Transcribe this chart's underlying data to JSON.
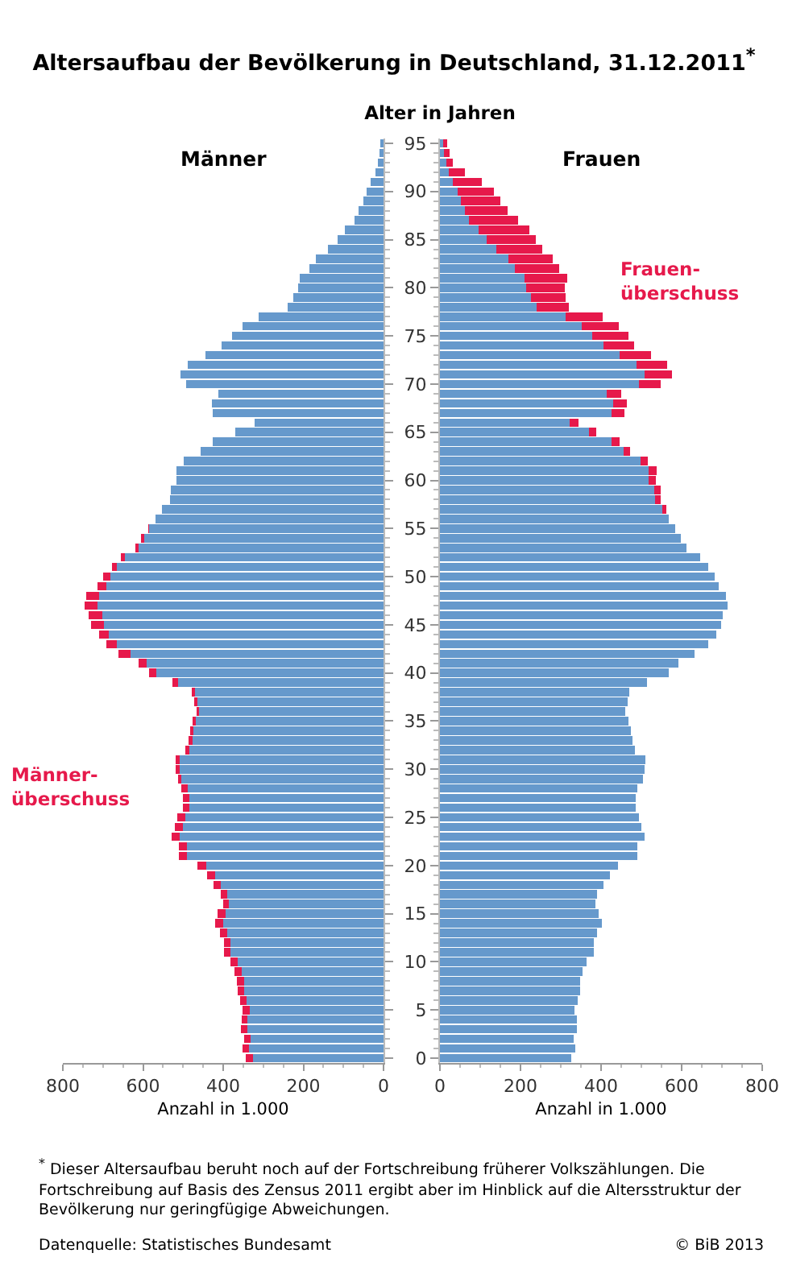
{
  "chart_data": [
    {
      "type": "bar",
      "orientation": "horizontal",
      "stacked": true,
      "tick_labels": "x",
      "title": "Altersaufbau der Bevölkerung in Deutschland, 31.12.2011$^{*}$",
      "subtitle": "Männer",
      "xlabel": "Anzahl in 1.000",
      "categories": [
        "95",
        null,
        null,
        null,
        null,
        "90",
        null,
        null,
        null,
        null,
        "85",
        null,
        null,
        null,
        null,
        "80",
        null,
        null,
        null,
        null,
        "75",
        null,
        null,
        null,
        null,
        "70",
        null,
        null,
        null,
        null,
        "65",
        null,
        null,
        null,
        null,
        "60",
        null,
        null,
        null,
        null,
        "55",
        null,
        null,
        null,
        null,
        "50",
        null,
        null,
        null,
        null,
        "45",
        null,
        null,
        null,
        null,
        "40",
        null,
        null,
        null,
        null,
        "35",
        null,
        null,
        null,
        null,
        "30",
        null,
        null,
        null,
        null,
        "25",
        null,
        null,
        null,
        null,
        "20",
        null,
        null,
        null,
        null,
        "15",
        null,
        null,
        null,
        null,
        "10",
        null,
        null,
        null,
        null,
        "5",
        null,
        null,
        null,
        null,
        "0"
      ],
      "xlim": [
        800,
        0
      ],
      "xticks": [
        800,
        600,
        400,
        200,
        0
      ],
      "series": [
        {
          "color": "#6699cc",
          "values": [
            8,
            10,
            15,
            21,
            32,
            43,
            51,
            62,
            72,
            96,
            115,
            139,
            169,
            185,
            209,
            214,
            225,
            239,
            311,
            351,
            378,
            405,
            445,
            488,
            507,
            493,
            413,
            429,
            426,
            322,
            370,
            426,
            456,
            498,
            517,
            517,
            531,
            533,
            552,
            568,
            584,
            598,
            611,
            645,
            665,
            682,
            691,
            709,
            714,
            701,
            698,
            685,
            665,
            632,
            591,
            567,
            513,
            470,
            465,
            460,
            468,
            474,
            477,
            484,
            509,
            508,
            504,
            489,
            485,
            485,
            494,
            500,
            508,
            490,
            490,
            442,
            421,
            406,
            389,
            385,
            393,
            401,
            390,
            381,
            381,
            363,
            354,
            348,
            348,
            342,
            334,
            339,
            339,
            331,
            336,
            326
          ]
        },
        {
          "color": "#e6194b",
          "values": [
            null,
            null,
            null,
            null,
            null,
            null,
            null,
            null,
            null,
            null,
            null,
            null,
            null,
            null,
            null,
            null,
            null,
            null,
            null,
            null,
            null,
            null,
            null,
            null,
            null,
            null,
            null,
            null,
            null,
            null,
            null,
            null,
            null,
            null,
            null,
            null,
            null,
            null,
            null,
            null,
            3,
            8,
            8,
            10,
            13,
            18,
            22,
            32,
            32,
            35,
            31,
            24,
            26,
            29,
            21,
            17,
            14,
            8,
            8,
            7,
            8,
            8,
            9,
            10,
            10,
            10,
            9,
            15,
            16,
            16,
            21,
            21,
            20,
            21,
            21,
            22,
            20,
            19,
            18,
            16,
            21,
            20,
            18,
            18,
            18,
            18,
            17,
            17,
            16,
            15,
            17,
            15,
            16,
            17,
            16,
            17
          ]
        }
      ],
      "annotations": [
        "Männer-\nüberschuss",
        "$^{*}$ Dieser Altersaufbau beruht noch auf der Fortschreibung früherer Volkszählungen. Die Fortschreibung auf Basis des Zensus 2011 ergibt aber im Hinblick auf die Altersstruktur der Bevölkerung nur geringfügige Abweichungen.",
        "Datenquelle: Statistisches Bundesamt",
        "© BiB 2013"
      ]
    },
    {
      "type": "bar",
      "orientation": "horizontal",
      "stacked": true,
      "subtitle": "Frauen",
      "ylabel": "Alter in Jahren",
      "xlabel": "Anzahl in 1.000",
      "categories": [
        "95",
        null,
        null,
        null,
        null,
        "90",
        null,
        null,
        null,
        null,
        "85",
        null,
        null,
        null,
        null,
        "80",
        null,
        null,
        null,
        null,
        "75",
        null,
        null,
        null,
        null,
        "70",
        null,
        null,
        null,
        null,
        "65",
        null,
        null,
        null,
        null,
        "60",
        null,
        null,
        null,
        null,
        "55",
        null,
        null,
        null,
        null,
        "50",
        null,
        null,
        null,
        null,
        "45",
        null,
        null,
        null,
        null,
        "40",
        null,
        null,
        null,
        null,
        "35",
        null,
        null,
        null,
        null,
        "30",
        null,
        null,
        null,
        null,
        "25",
        null,
        null,
        null,
        null,
        "20",
        null,
        null,
        null,
        null,
        "15",
        null,
        null,
        null,
        null,
        "10",
        null,
        null,
        null,
        null,
        "5",
        null,
        null,
        null,
        null,
        "0"
      ],
      "xlim": [
        0,
        800
      ],
      "xticks": [
        0,
        200,
        400,
        600,
        800
      ],
      "series": [
        {
          "color": "#6699cc",
          "values": [
            8,
            10,
            15,
            21,
            32,
            43,
            51,
            62,
            72,
            96,
            115,
            139,
            169,
            185,
            209,
            214,
            225,
            239,
            311,
            351,
            378,
            405,
            445,
            488,
            507,
            493,
            413,
            429,
            426,
            322,
            370,
            426,
            456,
            498,
            517,
            517,
            531,
            533,
            552,
            568,
            584,
            598,
            611,
            645,
            665,
            682,
            691,
            709,
            714,
            701,
            698,
            685,
            665,
            632,
            591,
            567,
            513,
            470,
            465,
            460,
            468,
            474,
            477,
            484,
            509,
            508,
            504,
            489,
            485,
            485,
            494,
            500,
            508,
            490,
            490,
            442,
            421,
            406,
            389,
            385,
            393,
            401,
            390,
            381,
            381,
            363,
            354,
            348,
            348,
            342,
            334,
            339,
            339,
            331,
            336,
            326
          ]
        },
        {
          "color": "#e6194b",
          "values": [
            9,
            13,
            16,
            41,
            71,
            90,
            98,
            106,
            121,
            126,
            122,
            114,
            110,
            110,
            107,
            96,
            87,
            81,
            92,
            93,
            90,
            77,
            78,
            75,
            69,
            54,
            37,
            35,
            31,
            22,
            17,
            19,
            16,
            17,
            20,
            19,
            16,
            14,
            9,
            null,
            null,
            null,
            null,
            null,
            null,
            null,
            null,
            null,
            null,
            null,
            null,
            null,
            null,
            null,
            null,
            null,
            null,
            null,
            null,
            null,
            null,
            null,
            null,
            null,
            null,
            null,
            null,
            null,
            null,
            null,
            null,
            null,
            null,
            null,
            null,
            null,
            null,
            null,
            null,
            null,
            null,
            null,
            null,
            null,
            null,
            null,
            null,
            null,
            null,
            null,
            null,
            null,
            null,
            null,
            null,
            null
          ]
        }
      ],
      "annotations": [
        "Frauen-\nüberschuss"
      ]
    }
  ]
}
